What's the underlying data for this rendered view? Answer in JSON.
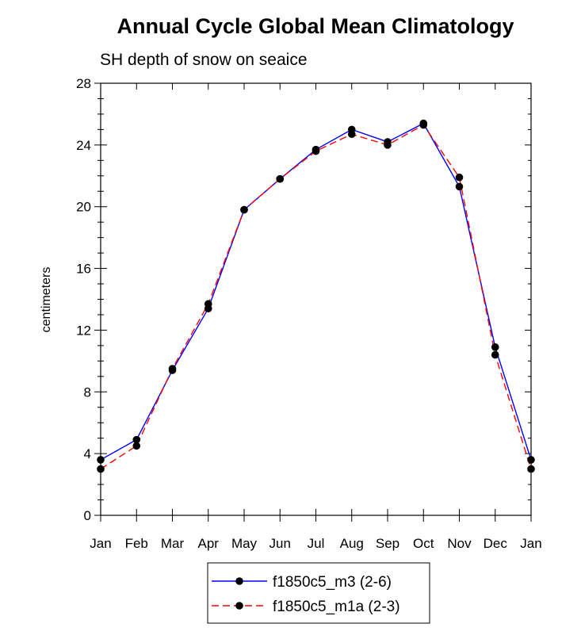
{
  "chart_data": {
    "type": "line",
    "title": "Annual Cycle Global Mean Climatology",
    "subtitle": "SH depth of snow on seaice",
    "xlabel": "",
    "ylabel": "centimeters",
    "categories": [
      "Jan",
      "Feb",
      "Mar",
      "Apr",
      "May",
      "Jun",
      "Jul",
      "Aug",
      "Sep",
      "Oct",
      "Nov",
      "Dec",
      "Jan"
    ],
    "ylim": [
      0,
      28
    ],
    "yticks": [
      0,
      4,
      8,
      12,
      16,
      20,
      24,
      28
    ],
    "grid": false,
    "legend_position": "bottom",
    "series": [
      {
        "name": "f1850c5_m3 (2-6)",
        "color": "#0000ff",
        "style": "solid",
        "values": [
          3.6,
          4.9,
          9.4,
          13.4,
          19.8,
          21.8,
          23.7,
          25.0,
          24.2,
          25.4,
          21.3,
          10.9,
          3.6
        ]
      },
      {
        "name": "f1850c5_m1a (2-3)",
        "color": "#ff0000",
        "style": "dashed",
        "values": [
          3.0,
          4.5,
          9.5,
          13.7,
          19.8,
          21.8,
          23.6,
          24.7,
          24.0,
          25.3,
          21.9,
          10.4,
          3.0
        ]
      }
    ]
  }
}
